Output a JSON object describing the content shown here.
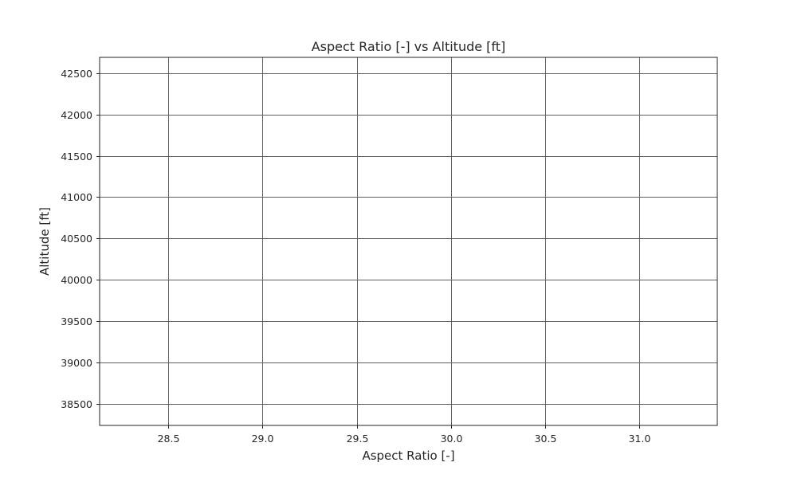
{
  "chart_data": {
    "type": "scatter",
    "title": "Aspect Ratio [-] vs Altitude [ft]",
    "xlabel": "Aspect Ratio [-]",
    "ylabel": "Altitude [ft]",
    "xlim": [
      28.135,
      31.415
    ],
    "ylim": [
      38240,
      42690
    ],
    "xticks": [
      28.5,
      29.0,
      29.5,
      30.0,
      30.5,
      31.0
    ],
    "xtick_labels": [
      "28.5",
      "29.0",
      "29.5",
      "30.0",
      "30.5",
      "31.0"
    ],
    "yticks": [
      38500,
      39000,
      39500,
      40000,
      40500,
      41000,
      41500,
      42000,
      42500
    ],
    "ytick_labels": [
      "38500",
      "39000",
      "39500",
      "40000",
      "40500",
      "41000",
      "41500",
      "42000",
      "42500"
    ],
    "grid": true,
    "series": []
  },
  "colors": {
    "grid": "#5f5f5f",
    "axes": "#262626",
    "text": "#262626",
    "background": "#ffffff"
  }
}
